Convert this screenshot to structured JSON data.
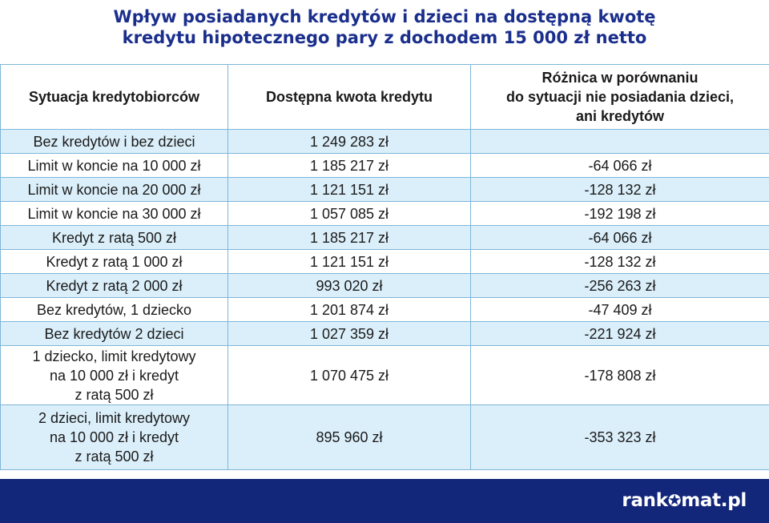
{
  "title": "Wpływ posiadanych kredytów i dzieci na dostępną kwotę\nkredytu hipotecznego pary z dochodem 15 000 zł netto",
  "table": {
    "headers": [
      "Sytuacja kredytobiorców",
      "Dostępna kwota kredytu",
      "Różnica w porównaniu\ndo sytuacji nie posiadania dzieci,\nani kredytów"
    ],
    "rows": [
      [
        "Bez kredytów i bez dzieci",
        "1 249 283 zł",
        ""
      ],
      [
        "Limit w koncie na 10 000 zł",
        "1 185 217 zł",
        "-64 066 zł"
      ],
      [
        "Limit w koncie na 20 000 zł",
        "1 121 151 zł",
        "-128 132 zł"
      ],
      [
        "Limit w koncie na 30 000 zł",
        "1 057 085 zł",
        "-192 198 zł"
      ],
      [
        "Kredyt z ratą 500 zł",
        "1 185 217 zł",
        "-64 066 zł"
      ],
      [
        "Kredyt z ratą 1 000 zł",
        "1 121 151 zł",
        "-128 132 zł"
      ],
      [
        "Kredyt z ratą 2 000 zł",
        "993 020 zł",
        "-256 263 zł"
      ],
      [
        "Bez kredytów, 1 dziecko",
        "1 201 874 zł",
        "-47 409 zł"
      ],
      [
        "Bez kredytów 2 dzieci",
        "1 027 359 zł",
        "-221 924 zł"
      ],
      [
        "1 dziecko, limit kredytowy\nna 10 000 zł i kredyt\nz ratą 500 zł",
        "1 070 475 zł",
        "-178 808 zł"
      ],
      [
        "2 dzieci, limit kredytowy\nna 10 000 zł i kredyt\nz ratą 500 zł",
        "895 960 zł",
        "-353 323 zł"
      ]
    ]
  },
  "footer": {
    "logo_left": "rank",
    "logo_right": "mat.pl",
    "logo_icon": "star-icon"
  },
  "colors": {
    "title": "#1a2e8c",
    "shade": "#dbeffa",
    "border": "#7fb6d9",
    "footer": "#12267a"
  }
}
